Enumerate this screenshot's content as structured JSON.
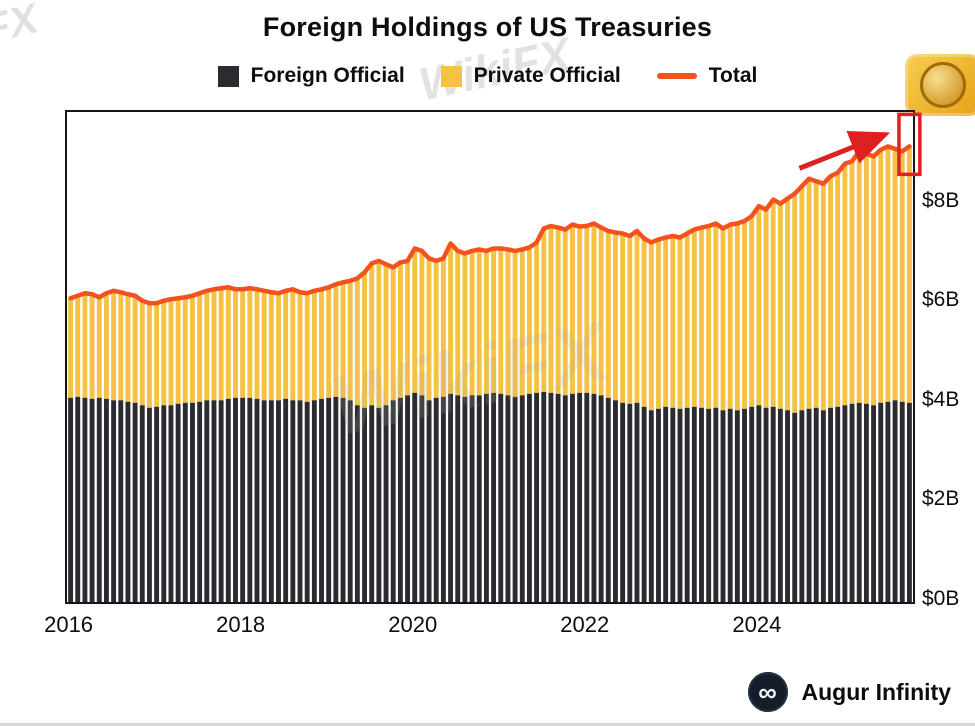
{
  "watermarks": {
    "brand_text": "WikiFX",
    "corner_text": "FX"
  },
  "branding": {
    "name": "Augur Infinity",
    "logo_symbol": "∞"
  },
  "chart_data": {
    "type": "bar",
    "stacked": true,
    "title": "Foreign Holdings of US Treasuries",
    "xlabel": "",
    "ylabel": "",
    "x_start": "2016-01",
    "frequency": "monthly",
    "x_tick_labels": [
      "2016",
      "2018",
      "2020",
      "2022",
      "2024"
    ],
    "x_tick_month_index": [
      0,
      24,
      48,
      72,
      96
    ],
    "y_tick_labels": [
      "$0B",
      "$2B",
      "$4B",
      "$6B",
      "$8B"
    ],
    "y_tick_values": [
      0,
      2,
      4,
      6,
      8
    ],
    "ylim": [
      0,
      9.84
    ],
    "grid": false,
    "legend_position": "top",
    "legend": [
      {
        "label": "Foreign Official",
        "color": "#2b2b31",
        "marker": "square"
      },
      {
        "label": "Private Official",
        "color": "#f6c243",
        "marker": "square"
      },
      {
        "label": "Total",
        "color": "#f4521d",
        "marker": "line"
      }
    ],
    "annotation": {
      "type": "arrow-and-box-highlight",
      "target": "last-bar",
      "color": "#e02020"
    },
    "series": [
      {
        "name": "Foreign Official",
        "values": [
          4.1,
          4.12,
          4.1,
          4.08,
          4.1,
          4.08,
          4.05,
          4.05,
          4.02,
          4.0,
          3.95,
          3.9,
          3.92,
          3.95,
          3.95,
          3.98,
          4.0,
          4.0,
          4.02,
          4.05,
          4.05,
          4.05,
          4.08,
          4.1,
          4.1,
          4.1,
          4.08,
          4.05,
          4.05,
          4.05,
          4.08,
          4.05,
          4.05,
          4.02,
          4.05,
          4.08,
          4.1,
          4.12,
          4.1,
          4.05,
          3.95,
          3.9,
          3.95,
          3.9,
          3.95,
          4.05,
          4.1,
          4.15,
          4.2,
          4.15,
          4.05,
          4.1,
          4.12,
          4.18,
          4.15,
          4.12,
          4.15,
          4.15,
          4.18,
          4.2,
          4.18,
          4.15,
          4.12,
          4.15,
          4.18,
          4.2,
          4.22,
          4.2,
          4.18,
          4.15,
          4.18,
          4.2,
          4.2,
          4.18,
          4.15,
          4.1,
          4.05,
          4.0,
          3.98,
          4.0,
          3.92,
          3.85,
          3.88,
          3.92,
          3.9,
          3.88,
          3.9,
          3.92,
          3.9,
          3.88,
          3.9,
          3.85,
          3.88,
          3.85,
          3.88,
          3.92,
          3.95,
          3.9,
          3.92,
          3.88,
          3.85,
          3.8,
          3.85,
          3.88,
          3.9,
          3.85,
          3.9,
          3.92,
          3.95,
          3.98,
          4.0,
          3.98,
          3.95,
          4.0,
          4.02,
          4.05,
          4.02,
          4.0
        ]
      },
      {
        "name": "Private Official",
        "values": [
          2.0,
          2.03,
          2.1,
          2.1,
          2.02,
          2.12,
          2.2,
          2.17,
          2.16,
          2.15,
          2.1,
          2.1,
          2.08,
          2.1,
          2.13,
          2.12,
          2.12,
          2.15,
          2.18,
          2.2,
          2.23,
          2.25,
          2.24,
          2.18,
          2.18,
          2.2,
          2.2,
          2.2,
          2.17,
          2.15,
          2.17,
          2.23,
          2.17,
          2.18,
          2.2,
          2.2,
          2.22,
          2.26,
          2.32,
          2.4,
          2.55,
          2.72,
          2.85,
          2.95,
          2.83,
          2.67,
          2.72,
          2.7,
          2.9,
          2.9,
          2.85,
          2.75,
          2.78,
          3.02,
          2.9,
          2.88,
          2.9,
          2.93,
          2.87,
          2.9,
          2.92,
          2.93,
          2.93,
          2.93,
          2.94,
          3.02,
          3.28,
          3.35,
          3.34,
          3.33,
          3.4,
          3.34,
          3.35,
          3.42,
          3.37,
          3.35,
          3.37,
          3.4,
          3.37,
          3.45,
          3.38,
          3.37,
          3.4,
          3.4,
          3.45,
          3.44,
          3.5,
          3.56,
          3.62,
          3.67,
          3.7,
          3.65,
          3.7,
          3.75,
          3.77,
          3.83,
          4.0,
          3.98,
          4.16,
          4.12,
          4.25,
          4.4,
          4.5,
          4.62,
          4.55,
          4.55,
          4.65,
          4.7,
          4.85,
          4.87,
          5.05,
          5.02,
          5.0,
          5.08,
          5.13,
          5.05,
          5.03,
          5.15
        ]
      },
      {
        "name": "Total",
        "values": [
          6.1,
          6.15,
          6.2,
          6.18,
          6.12,
          6.2,
          6.25,
          6.22,
          6.18,
          6.15,
          6.05,
          6.0,
          6.0,
          6.05,
          6.08,
          6.1,
          6.12,
          6.15,
          6.2,
          6.25,
          6.28,
          6.3,
          6.32,
          6.28,
          6.28,
          6.3,
          6.28,
          6.25,
          6.22,
          6.2,
          6.25,
          6.28,
          6.22,
          6.2,
          6.25,
          6.28,
          6.32,
          6.38,
          6.42,
          6.45,
          6.5,
          6.62,
          6.8,
          6.85,
          6.78,
          6.72,
          6.82,
          6.85,
          7.1,
          7.05,
          6.9,
          6.85,
          6.9,
          7.2,
          7.05,
          7.0,
          7.05,
          7.08,
          7.05,
          7.1,
          7.1,
          7.08,
          7.05,
          7.08,
          7.12,
          7.22,
          7.5,
          7.55,
          7.52,
          7.48,
          7.58,
          7.54,
          7.55,
          7.6,
          7.52,
          7.45,
          7.42,
          7.4,
          7.35,
          7.45,
          7.3,
          7.22,
          7.28,
          7.32,
          7.35,
          7.32,
          7.4,
          7.48,
          7.52,
          7.55,
          7.6,
          7.5,
          7.58,
          7.6,
          7.65,
          7.75,
          7.95,
          7.88,
          8.08,
          8.0,
          8.1,
          8.2,
          8.35,
          8.5,
          8.45,
          8.4,
          8.55,
          8.62,
          8.8,
          8.85,
          9.05,
          9.0,
          8.95,
          9.08,
          9.15,
          9.1,
          9.05,
          9.15
        ]
      }
    ]
  }
}
